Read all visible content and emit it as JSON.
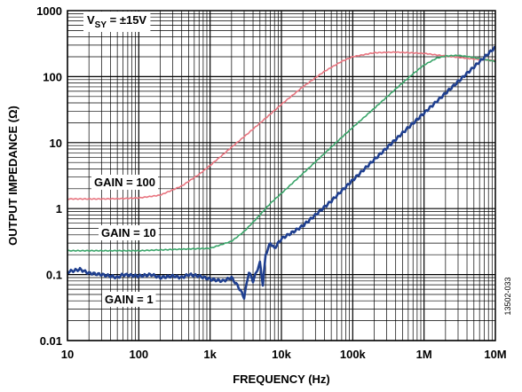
{
  "chart_data": {
    "type": "line",
    "xscale": "log",
    "yscale": "log",
    "xlim": [
      10,
      10000000
    ],
    "ylim": [
      0.01,
      1000
    ],
    "grid": true,
    "xlabel": "FREQUENCY (Hz)",
    "ylabel": "OUTPUT IMPEDANCE (Ω)",
    "x_ticks": [
      "10",
      "100",
      "1k",
      "10k",
      "100k",
      "1M",
      "10M"
    ],
    "y_ticks": [
      "0.01",
      "0.1",
      "1",
      "10",
      "100",
      "1000"
    ],
    "condition": {
      "prefix": "V",
      "subscript": "SY",
      "suffix": " = ±15V"
    },
    "figure_id": "13502-033",
    "series": [
      {
        "name": "GAIN = 100",
        "color": "#e8747f",
        "points": [
          [
            10,
            1.4
          ],
          [
            30,
            1.4
          ],
          [
            60,
            1.42
          ],
          [
            100,
            1.45
          ],
          [
            200,
            1.6
          ],
          [
            400,
            2.2
          ],
          [
            700,
            3.3
          ],
          [
            1000,
            4.5
          ],
          [
            2000,
            8.5
          ],
          [
            4000,
            16
          ],
          [
            7000,
            27
          ],
          [
            10000,
            38
          ],
          [
            20000,
            70
          ],
          [
            40000,
            120
          ],
          [
            70000,
            170
          ],
          [
            100000,
            200
          ],
          [
            200000,
            230
          ],
          [
            400000,
            235
          ],
          [
            1000000,
            225
          ],
          [
            2000000,
            205
          ],
          [
            5000000,
            185
          ],
          [
            10000000,
            175
          ]
        ]
      },
      {
        "name": "GAIN = 10",
        "color": "#3aa56a",
        "points": [
          [
            10,
            0.23
          ],
          [
            30,
            0.23
          ],
          [
            100,
            0.23
          ],
          [
            300,
            0.24
          ],
          [
            1000,
            0.25
          ],
          [
            2000,
            0.32
          ],
          [
            3000,
            0.45
          ],
          [
            5000,
            0.8
          ],
          [
            7000,
            1.2
          ],
          [
            10000,
            1.7
          ],
          [
            20000,
            3.4
          ],
          [
            40000,
            6.8
          ],
          [
            70000,
            12
          ],
          [
            100000,
            17
          ],
          [
            200000,
            33
          ],
          [
            400000,
            65
          ],
          [
            700000,
            110
          ],
          [
            1000000,
            150
          ],
          [
            1500000,
            190
          ],
          [
            2000000,
            205
          ],
          [
            3000000,
            210
          ],
          [
            5000000,
            195
          ],
          [
            10000000,
            170
          ]
        ]
      },
      {
        "name": "GAIN = 1",
        "color": "#1f3f8f",
        "points": [
          [
            10,
            0.11
          ],
          [
            15,
            0.12
          ],
          [
            20,
            0.105
          ],
          [
            30,
            0.1
          ],
          [
            40,
            0.095
          ],
          [
            50,
            0.09
          ],
          [
            60,
            0.1
          ],
          [
            80,
            0.097
          ],
          [
            100,
            0.095
          ],
          [
            150,
            0.1
          ],
          [
            200,
            0.09
          ],
          [
            300,
            0.095
          ],
          [
            400,
            0.09
          ],
          [
            500,
            0.1
          ],
          [
            700,
            0.095
          ],
          [
            1000,
            0.085
          ],
          [
            1500,
            0.08
          ],
          [
            2000,
            0.09
          ],
          [
            2500,
            0.065
          ],
          [
            3000,
            0.045
          ],
          [
            3500,
            0.11
          ],
          [
            4000,
            0.08
          ],
          [
            5000,
            0.15
          ],
          [
            5500,
            0.07
          ],
          [
            6000,
            0.2
          ],
          [
            7000,
            0.3
          ],
          [
            8000,
            0.25
          ],
          [
            10000,
            0.35
          ],
          [
            15000,
            0.45
          ],
          [
            20000,
            0.55
          ],
          [
            30000,
            0.8
          ],
          [
            50000,
            1.3
          ],
          [
            100000,
            2.7
          ],
          [
            200000,
            5.5
          ],
          [
            500000,
            14
          ],
          [
            1000000,
            28
          ],
          [
            2000000,
            56
          ],
          [
            5000000,
            140
          ],
          [
            10000000,
            280
          ]
        ]
      }
    ]
  }
}
